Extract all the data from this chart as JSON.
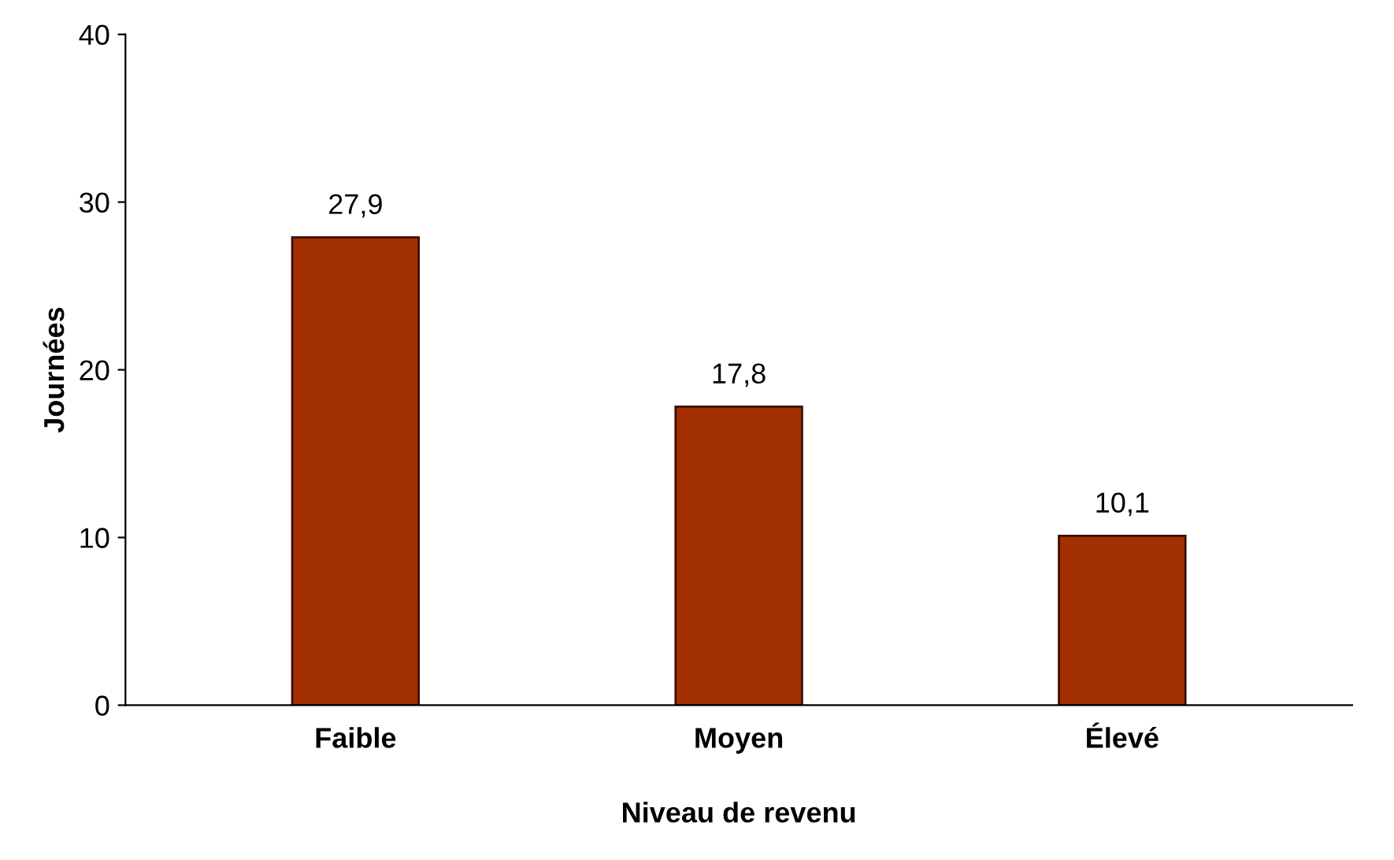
{
  "chart_data": {
    "type": "bar",
    "xlabel": "Niveau de revenu",
    "ylabel": "Journées",
    "categories": [
      "Faible",
      "Moyen",
      "Élevé"
    ],
    "values": [
      27.9,
      17.8,
      10.1
    ],
    "value_labels": [
      "27,9",
      "17,8",
      "10,1"
    ],
    "color": "#a33000",
    "ylim": [
      0,
      40
    ],
    "yticks": [
      0,
      10,
      20,
      30,
      40
    ],
    "grid": false
  }
}
